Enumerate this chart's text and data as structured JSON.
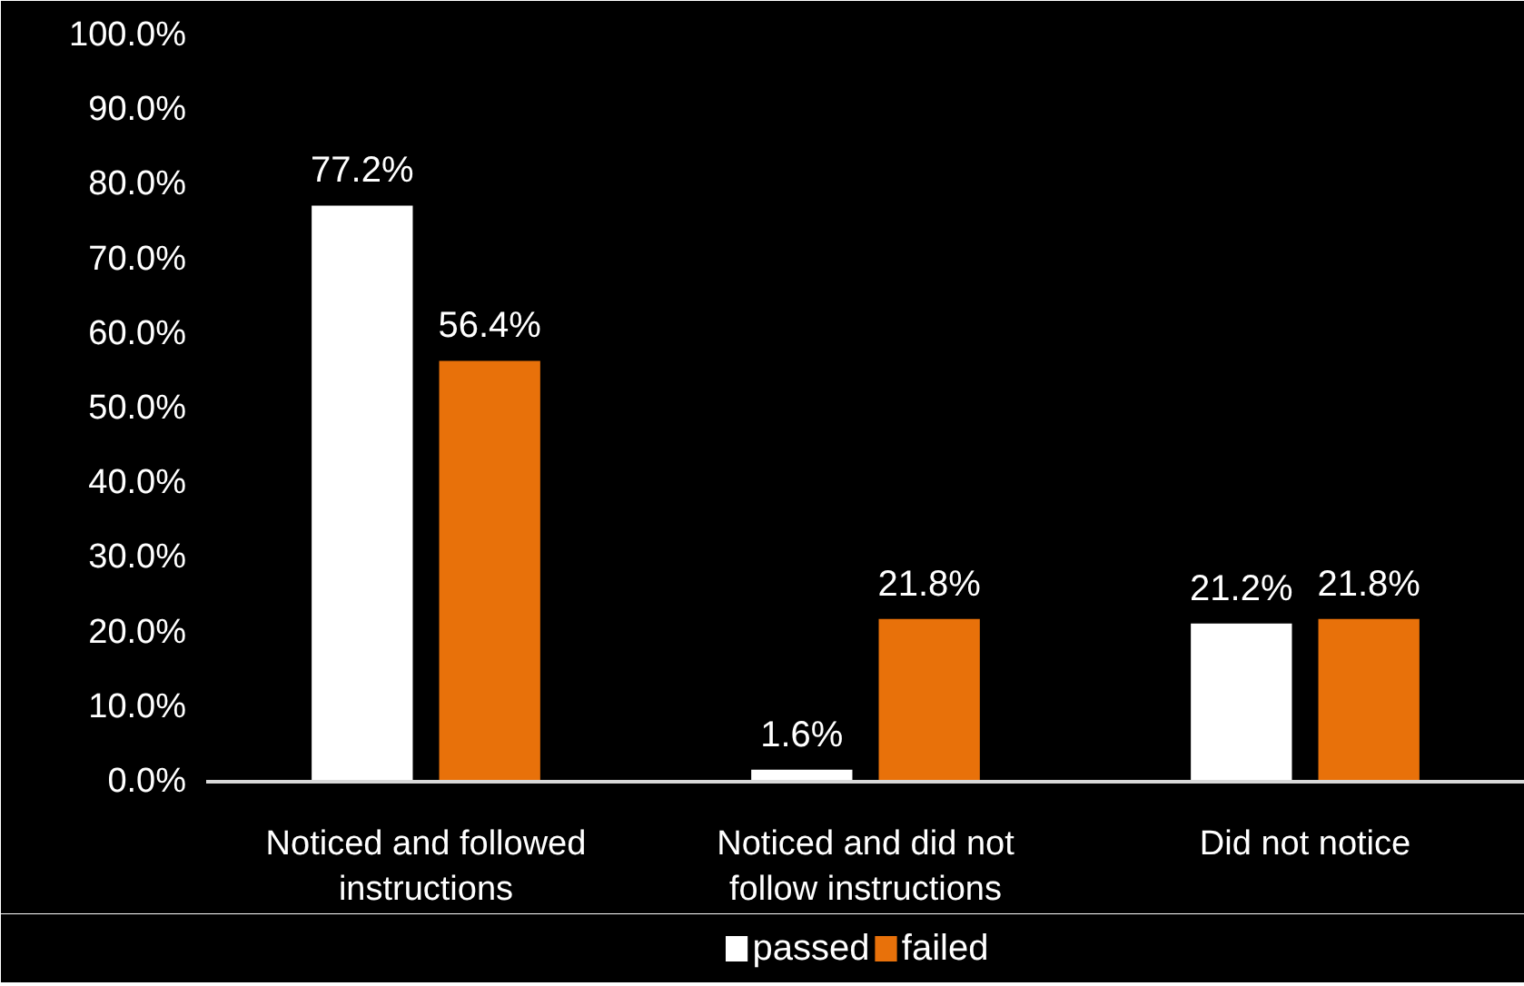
{
  "chart_data": {
    "type": "bar",
    "categories": [
      "Noticed and followed instructions",
      "Noticed and did not follow instructions",
      "Did not notice"
    ],
    "series": [
      {
        "name": "passed",
        "color": "#ffffff",
        "values": [
          77.2,
          1.6,
          21.2
        ],
        "value_labels": [
          "77.2%",
          "1.6%",
          "21.2%"
        ]
      },
      {
        "name": "failed",
        "color": "#e8710a",
        "values": [
          56.4,
          21.8,
          21.8
        ],
        "value_labels": [
          "56.4%",
          "21.8%",
          "21.8%"
        ]
      }
    ],
    "ylim": [
      0,
      100
    ],
    "yticks": [
      {
        "value": 0,
        "label": "0.0%"
      },
      {
        "value": 10,
        "label": "10.0%"
      },
      {
        "value": 20,
        "label": "20.0%"
      },
      {
        "value": 30,
        "label": "30.0%"
      },
      {
        "value": 40,
        "label": "40.0%"
      },
      {
        "value": 50,
        "label": "50.0%"
      },
      {
        "value": 60,
        "label": "60.0%"
      },
      {
        "value": 70,
        "label": "70.0%"
      },
      {
        "value": 80,
        "label": "80.0%"
      },
      {
        "value": 90,
        "label": "90.0%"
      },
      {
        "value": 100,
        "label": "100.0%"
      }
    ],
    "grid": false,
    "legend": "bottom"
  }
}
